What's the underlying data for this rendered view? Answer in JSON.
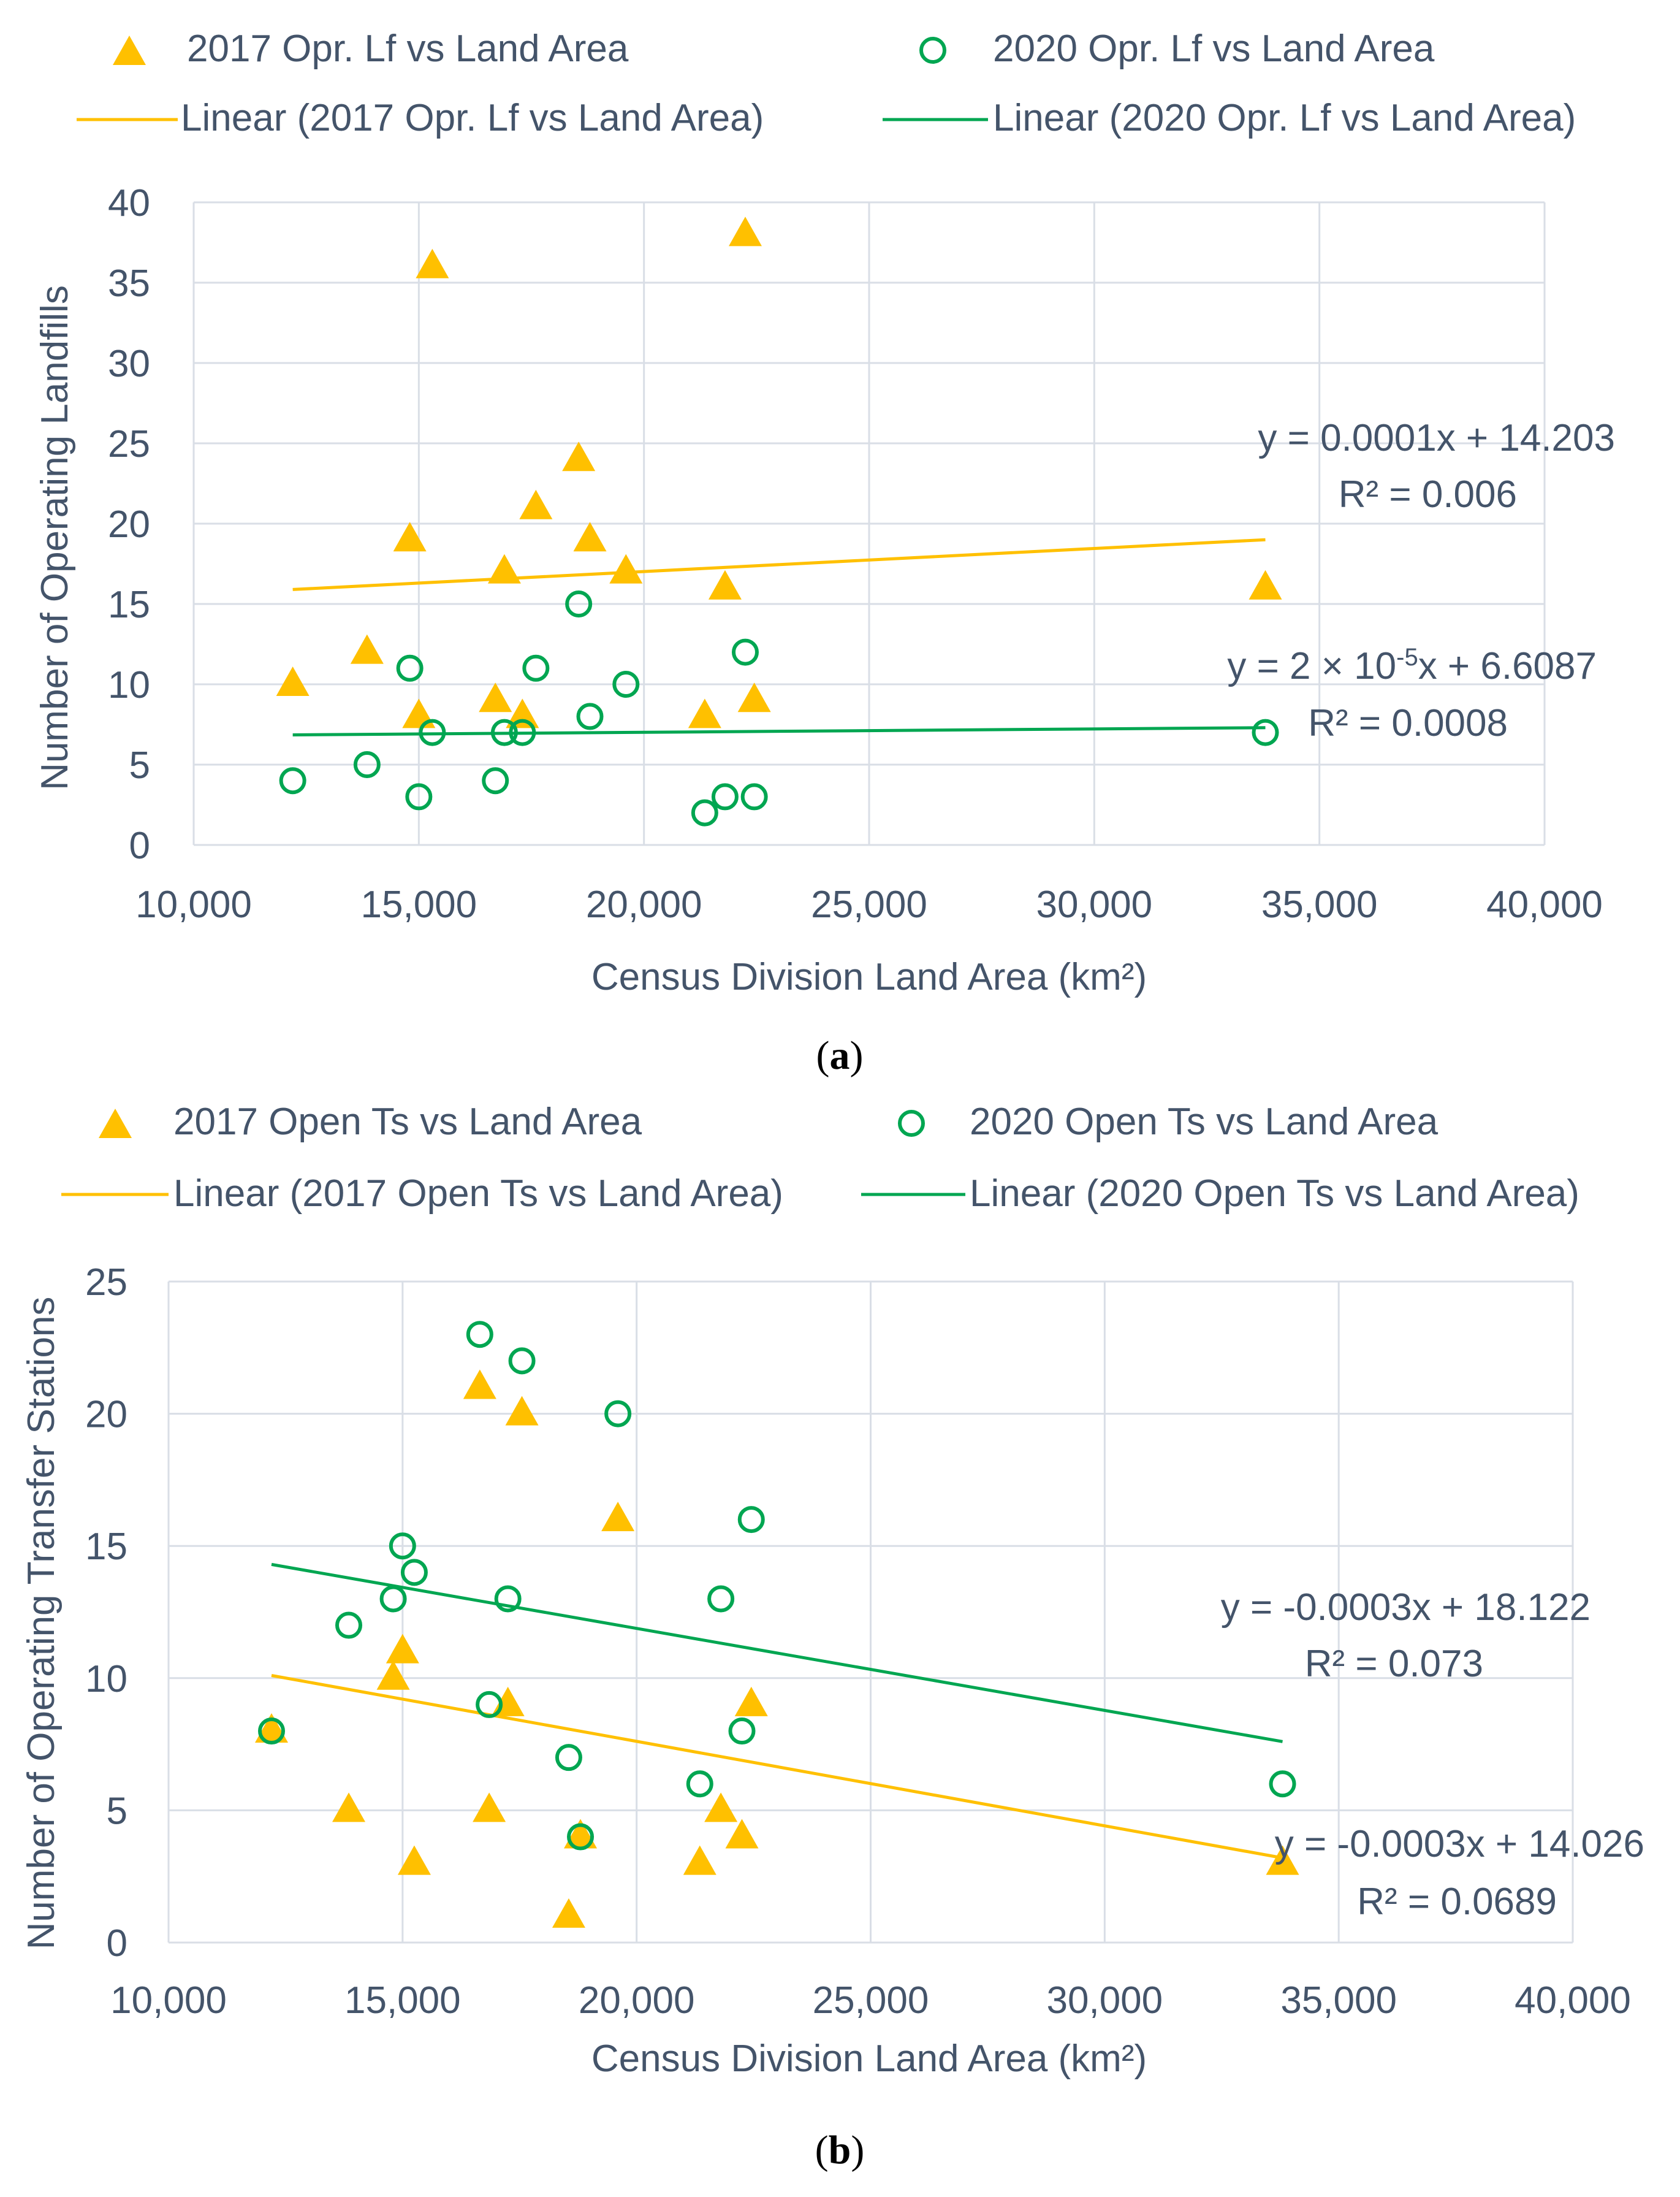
{
  "colors": {
    "series2017": "#ffc000",
    "series2020": "#00a651",
    "grid": "#d9dee6",
    "text": "#44546a"
  },
  "chart_data": [
    {
      "type": "scatter",
      "caption": "(a)",
      "caption_letter": "a",
      "xlabel": "Census Division Land Area (km²)",
      "ylabel": "Number of Operating Landfills",
      "xlim": [
        10000,
        40000
      ],
      "ylim": [
        0,
        40
      ],
      "x_ticks": [
        10000,
        15000,
        20000,
        25000,
        30000,
        35000,
        40000
      ],
      "x_tick_labels": [
        "10,000",
        "15,000",
        "20,000",
        "25,000",
        "30,000",
        "35,000",
        "40,000"
      ],
      "y_ticks": [
        0,
        5,
        10,
        15,
        20,
        25,
        30,
        35,
        40
      ],
      "y_tick_labels": [
        "0",
        "5",
        "10",
        "15",
        "20",
        "25",
        "30",
        "35",
        "40"
      ],
      "grid": true,
      "legend_position": "top",
      "series": [
        {
          "name": "2017 Opr. Lf vs Land Area",
          "marker": "triangle",
          "color": "#ffc000",
          "x": [
            12200,
            13850,
            14800,
            15000,
            15300,
            16700,
            16900,
            17300,
            17600,
            18550,
            18800,
            19600,
            21350,
            21800,
            22250,
            22450,
            33800
          ],
          "y": [
            10,
            12,
            19,
            8,
            36,
            9,
            17,
            8,
            21,
            24,
            19,
            17,
            8,
            16,
            38,
            9,
            16
          ]
        },
        {
          "name": "2020 Opr. Lf vs Land Area",
          "marker": "circle-open",
          "color": "#00a651",
          "x": [
            12200,
            13850,
            14800,
            15000,
            15300,
            16700,
            16900,
            17300,
            17600,
            18550,
            18800,
            19600,
            21350,
            21800,
            22250,
            22450,
            33800
          ],
          "y": [
            4,
            5,
            11,
            3,
            7,
            4,
            7,
            7,
            11,
            15,
            8,
            10,
            2,
            3,
            12,
            3,
            7
          ]
        }
      ],
      "trendlines": [
        {
          "name": "Linear (2017 Opr. Lf vs Land Area)",
          "color": "#ffc000",
          "x_range": [
            12200,
            33800
          ],
          "y_range": [
            15.9,
            19.0
          ],
          "equation": "y = 0.0001x + 14.203",
          "r2": "R² = 0.006"
        },
        {
          "name": "Linear (2020 Opr. Lf vs Land Area)",
          "color": "#00a651",
          "x_range": [
            12200,
            33800
          ],
          "y_range": [
            6.85,
            7.3
          ],
          "equation": "y = 2 × 10-5x + 6.6087",
          "equation_parts": [
            "y = 2 × 10",
            "-5",
            "x + 6.6087"
          ],
          "r2": "R² = 0.0008"
        }
      ]
    },
    {
      "type": "scatter",
      "caption": "(b)",
      "caption_letter": "b",
      "xlabel": "Census Division Land Area (km²)",
      "ylabel": "Number of Operating Transfer Stations",
      "xlim": [
        10000,
        40000
      ],
      "ylim": [
        0,
        25
      ],
      "x_ticks": [
        10000,
        15000,
        20000,
        25000,
        30000,
        35000,
        40000
      ],
      "x_tick_labels": [
        "10,000",
        "15,000",
        "20,000",
        "25,000",
        "30,000",
        "35,000",
        "40,000"
      ],
      "y_ticks": [
        0,
        5,
        10,
        15,
        20,
        25
      ],
      "y_tick_labels": [
        "0",
        "5",
        "10",
        "15",
        "20",
        "25"
      ],
      "grid": true,
      "legend_position": "top",
      "series": [
        {
          "name": "2017 Open Ts vs Land Area",
          "marker": "triangle",
          "color": "#ffc000",
          "x": [
            12200,
            13850,
            14800,
            15000,
            15250,
            16650,
            16850,
            17250,
            17550,
            18550,
            18800,
            19600,
            21350,
            21800,
            22250,
            22450,
            33800
          ],
          "y": [
            8,
            5,
            10,
            11,
            3,
            21,
            5,
            9,
            20,
            1,
            4,
            16,
            3,
            5,
            4,
            9,
            3
          ]
        },
        {
          "name": "2020 Open Ts vs Land Area",
          "marker": "circle-open",
          "color": "#00a651",
          "x": [
            12200,
            13850,
            14800,
            15000,
            15250,
            16650,
            16850,
            17250,
            17550,
            18550,
            18800,
            19600,
            21350,
            21800,
            22250,
            22450,
            33800
          ],
          "y": [
            8,
            12,
            13,
            15,
            14,
            23,
            9,
            13,
            22,
            7,
            4,
            20,
            6,
            13,
            8,
            16,
            6
          ]
        }
      ],
      "trendlines": [
        {
          "name": "Linear (2017 Open Ts vs Land Area)",
          "color": "#ffc000",
          "x_range": [
            12200,
            33800
          ],
          "y_range": [
            10.1,
            3.2
          ],
          "equation": "y = -0.0003x + 14.026",
          "r2": "R² = 0.0689"
        },
        {
          "name": "Linear (2020 Open Ts vs Land Area)",
          "color": "#00a651",
          "x_range": [
            12200,
            33800
          ],
          "y_range": [
            14.3,
            7.6
          ],
          "equation": "y = -0.0003x + 18.122",
          "r2": "R² = 0.073"
        }
      ]
    }
  ]
}
